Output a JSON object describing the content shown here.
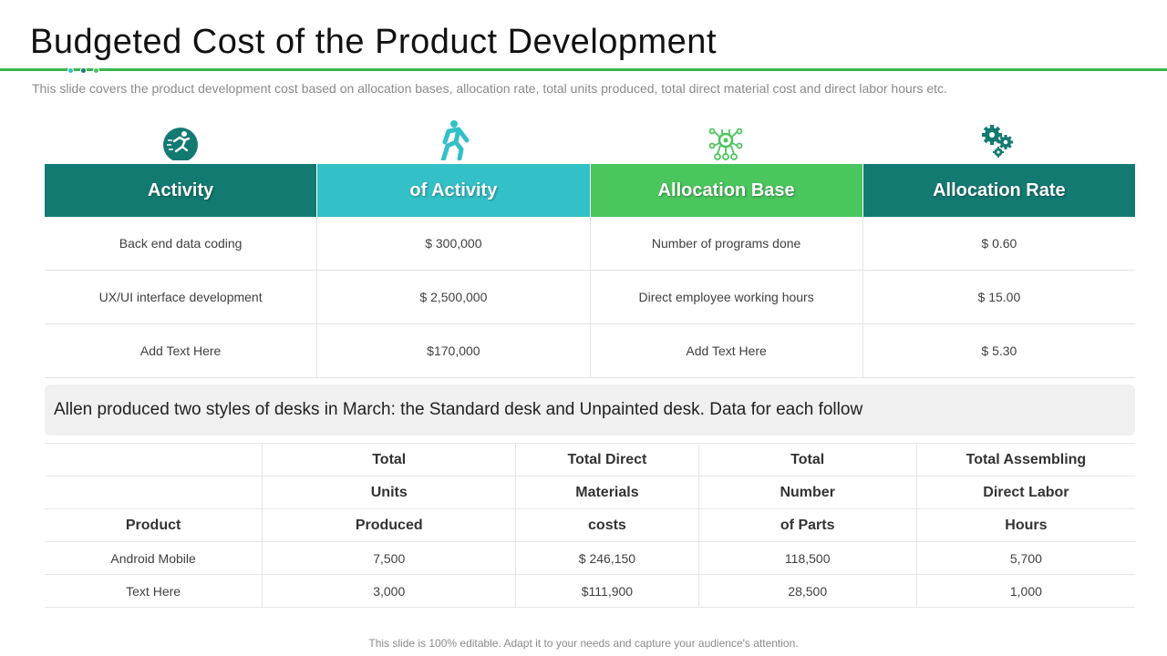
{
  "title": "Budgeted Cost of the Product Development",
  "subtitle": "This slide covers the product development cost based on allocation bases, allocation rate, total units produced, total direct material cost and direct labor hours  etc.",
  "colors": {
    "accent_green": "#3ab54a",
    "header_dark_teal": "#137a72",
    "header_cyan": "#33c0c6",
    "header_green": "#4bc55e",
    "dot_1": "#33c0c6",
    "dot_2": "#137a72",
    "dot_3": "#4bc55e"
  },
  "icons": [
    "running-figure-badge-icon",
    "running-person-icon",
    "robot-network-icon",
    "gears-icon"
  ],
  "activity_table": {
    "headers": [
      "Activity",
      "of Activity",
      "Allocation Base",
      "Allocation Rate"
    ],
    "rows": [
      [
        "Back end data coding",
        "$ 300,000",
        "Number of programs done",
        "$ 0.60"
      ],
      [
        "UX/UI interface development",
        "$ 2,500,000",
        "Direct employee working hours",
        "$ 15.00"
      ],
      [
        "Add Text Here",
        "$170,000",
        "Add Text Here",
        "$ 5.30"
      ]
    ]
  },
  "banner_text": "Allen produced two styles of desks in March: the Standard desk and Unpainted desk. Data for each follow",
  "product_table": {
    "header_rows": [
      [
        "",
        "Total",
        "Total Direct",
        "Total",
        "Total Assembling"
      ],
      [
        "",
        "Units",
        "Materials",
        "Number",
        "Direct Labor"
      ],
      [
        "Product",
        "Produced",
        "costs",
        "of Parts",
        "Hours"
      ]
    ],
    "rows": [
      [
        "Android Mobile",
        "7,500",
        "$ 246,150",
        "118,500",
        "5,700"
      ],
      [
        "Text Here",
        "3,000",
        "$111,900",
        "28,500",
        "1,000"
      ]
    ]
  },
  "footer": "This slide is 100% editable. Adapt it to your needs and capture your audience's attention."
}
